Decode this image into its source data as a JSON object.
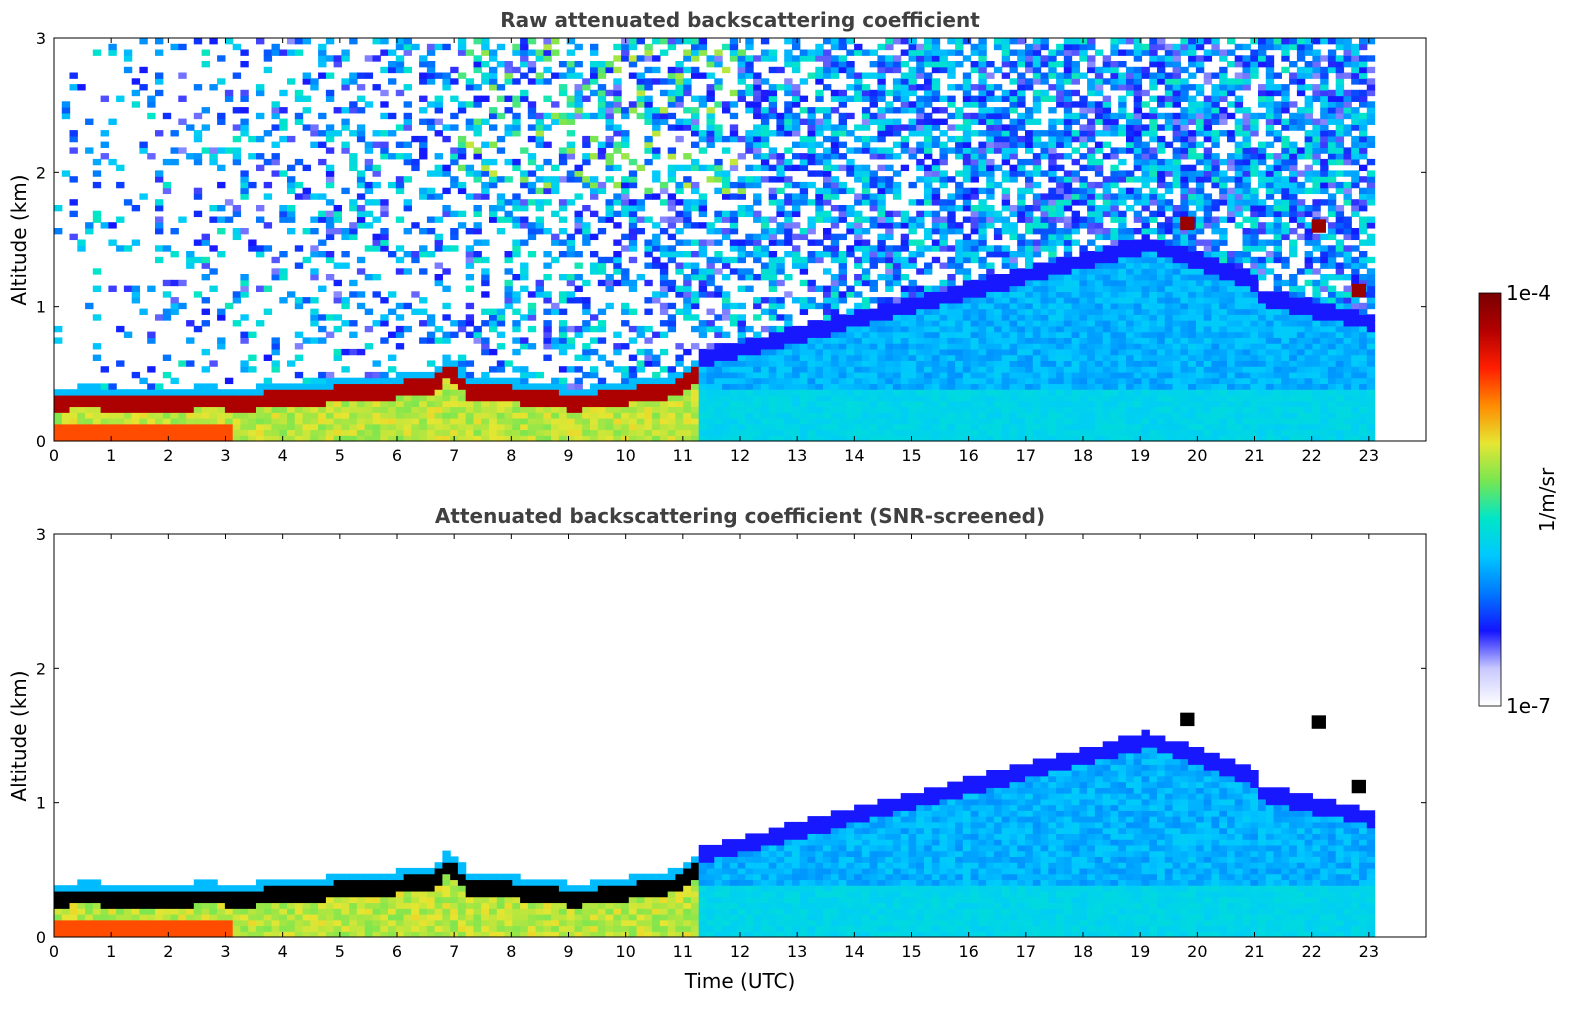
{
  "colors": {
    "colormap": [
      "#ffffff",
      "#c8c8ff",
      "#1414ff",
      "#0078ff",
      "#00c8ff",
      "#00e6c8",
      "#78e650",
      "#e6e632",
      "#ff8c00",
      "#ff1e00",
      "#b40000",
      "#780000"
    ],
    "frame": "#000000",
    "title": "#404040",
    "above_range": "#000000"
  },
  "chart_data": [
    {
      "type": "heatmap",
      "title": "Raw attenuated backscattering coefficient",
      "xlabel": "",
      "ylabel": "Altitude (km)",
      "xlim": [
        0,
        24
      ],
      "ylim": [
        0,
        3
      ],
      "x_ticks": [
        0,
        1,
        2,
        3,
        4,
        5,
        6,
        7,
        8,
        9,
        10,
        11,
        12,
        13,
        14,
        15,
        16,
        17,
        18,
        19,
        20,
        21,
        22,
        23
      ],
      "y_ticks": [
        0,
        1,
        2,
        3
      ],
      "data_end_time": 23.1,
      "screened": false
    },
    {
      "type": "heatmap",
      "title": "Attenuated backscattering coefficient (SNR-screened)",
      "xlabel": "Time (UTC)",
      "ylabel": "Altitude (km)",
      "xlim": [
        0,
        24
      ],
      "ylim": [
        0,
        3
      ],
      "x_ticks": [
        0,
        1,
        2,
        3,
        4,
        5,
        6,
        7,
        8,
        9,
        10,
        11,
        12,
        13,
        14,
        15,
        16,
        17,
        18,
        19,
        20,
        21,
        22,
        23
      ],
      "y_ticks": [
        0,
        1,
        2,
        3
      ],
      "data_end_time": 23.1,
      "screened": true
    }
  ],
  "colorbar": {
    "max_label": "1e-4",
    "min_label": "1e-7",
    "unit_label": "1/m/sr",
    "scale": "log",
    "range": [
      1e-07,
      0.0001
    ]
  }
}
